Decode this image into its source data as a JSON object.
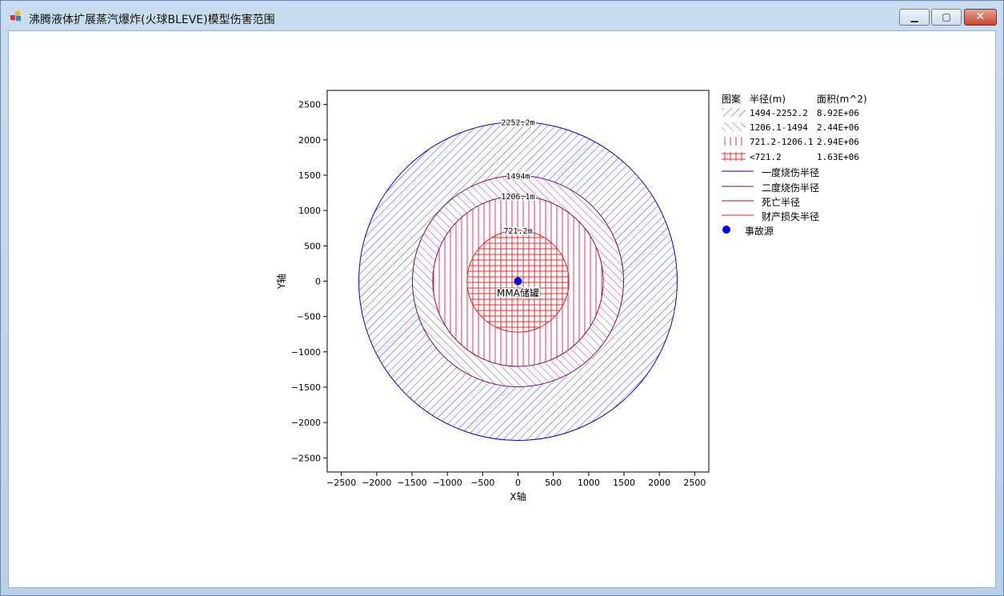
{
  "window": {
    "title": "沸腾液体扩展蒸汽爆炸(火球BLEVE)模型伤害范围",
    "buttons": {
      "minimize": "▁",
      "maximize": "▢",
      "close": "✕"
    }
  },
  "chart_data": {
    "type": "scatter",
    "xlabel": "X轴",
    "ylabel": "Y轴",
    "xlim": [
      -2700,
      2700
    ],
    "ylim": [
      -2700,
      2700
    ],
    "xticks": [
      -2500,
      -2000,
      -1500,
      -1000,
      -500,
      0,
      500,
      1000,
      1500,
      2000,
      2500
    ],
    "yticks": [
      2500,
      2000,
      1500,
      1000,
      500,
      0,
      -500,
      -1000,
      -1500,
      -2000,
      -2500
    ],
    "xtick_labels": [
      "−2500",
      "−2000",
      "−1500",
      "−1000",
      "−500",
      "0",
      "500",
      "1000",
      "1500",
      "2000",
      "2500"
    ],
    "ytick_labels": [
      "2500",
      "2000",
      "1500",
      "1000",
      "500",
      "0",
      "−500",
      "−1000",
      "−1500",
      "−2000",
      "−2500"
    ],
    "circles": [
      {
        "radius": 2252.2,
        "label": "2252.2m",
        "color": "#0000cc",
        "legend": "一度烧伤半径"
      },
      {
        "radius": 1494,
        "label": "1494m",
        "color": "#800060",
        "legend": "二度烧伤半径"
      },
      {
        "radius": 1206.1,
        "label": "1206.1m",
        "color": "#a00040",
        "legend": "死亡半径"
      },
      {
        "radius": 721.2,
        "label": "721.2m",
        "color": "#dd2222",
        "legend": "财产损失半径"
      }
    ],
    "zones": [
      {
        "range": "1494-2252.2",
        "area": "8.92E+06",
        "pattern": "diag-blue"
      },
      {
        "range": "1206.1-1494",
        "area": "2.44E+06",
        "pattern": "diag-purple"
      },
      {
        "range": "721.2-1206.1",
        "area": "2.94E+06",
        "pattern": "vert-red"
      },
      {
        "range": "<721.2",
        "area": "1.63E+06",
        "pattern": "cross-red"
      }
    ],
    "source": {
      "x": 0,
      "y": 0,
      "label": "MMA储罐",
      "color": "#0000ff",
      "legend": "事故源"
    }
  },
  "legend": {
    "header_pattern": "图案",
    "header_radius": "半径(m)",
    "header_area": "面积(m^2)"
  }
}
